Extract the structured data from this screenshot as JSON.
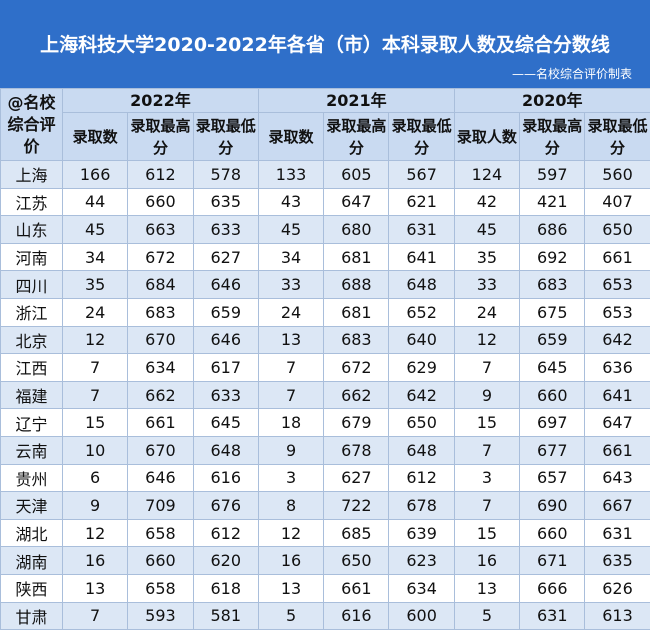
{
  "header": {
    "title": "上海科技大学2020-2022年各省（市）本科录取人数及综合分数线",
    "subtitle": "——名校综合评价制表"
  },
  "table": {
    "corner": "@名校综合评价",
    "years": [
      "2022年",
      "2021年",
      "2020年"
    ],
    "subheaders": [
      "录取数",
      "录取最高分",
      "录取最低分",
      "录取数",
      "录取最高分",
      "录取最低分",
      "录取人数",
      "录取最高分",
      "录取最低分"
    ],
    "rows": [
      [
        "上海",
        166,
        612,
        578,
        133,
        605,
        567,
        124,
        597,
        560
      ],
      [
        "江苏",
        44,
        660,
        635,
        43,
        647,
        621,
        42,
        421,
        407
      ],
      [
        "山东",
        45,
        663,
        633,
        45,
        680,
        631,
        45,
        686,
        650
      ],
      [
        "河南",
        34,
        672,
        627,
        34,
        681,
        641,
        35,
        692,
        661
      ],
      [
        "四川",
        35,
        684,
        646,
        33,
        688,
        648,
        33,
        683,
        653
      ],
      [
        "浙江",
        24,
        683,
        659,
        24,
        681,
        652,
        24,
        675,
        653
      ],
      [
        "北京",
        12,
        670,
        646,
        13,
        683,
        640,
        12,
        659,
        642
      ],
      [
        "江西",
        7,
        634,
        617,
        7,
        672,
        629,
        7,
        645,
        636
      ],
      [
        "福建",
        7,
        662,
        633,
        7,
        662,
        642,
        9,
        660,
        641
      ],
      [
        "辽宁",
        15,
        661,
        645,
        18,
        679,
        650,
        15,
        697,
        647
      ],
      [
        "云南",
        10,
        670,
        648,
        9,
        678,
        648,
        7,
        677,
        661
      ],
      [
        "贵州",
        6,
        646,
        616,
        3,
        627,
        612,
        3,
        657,
        643
      ],
      [
        "天津",
        9,
        709,
        676,
        8,
        722,
        678,
        7,
        690,
        667
      ],
      [
        "湖北",
        12,
        658,
        612,
        12,
        685,
        639,
        15,
        660,
        631
      ],
      [
        "湖南",
        16,
        660,
        620,
        16,
        650,
        623,
        16,
        671,
        635
      ],
      [
        "陕西",
        13,
        658,
        618,
        13,
        661,
        634,
        13,
        666,
        626
      ],
      [
        "甘肃",
        7,
        593,
        581,
        5,
        616,
        600,
        5,
        631,
        613
      ]
    ]
  }
}
